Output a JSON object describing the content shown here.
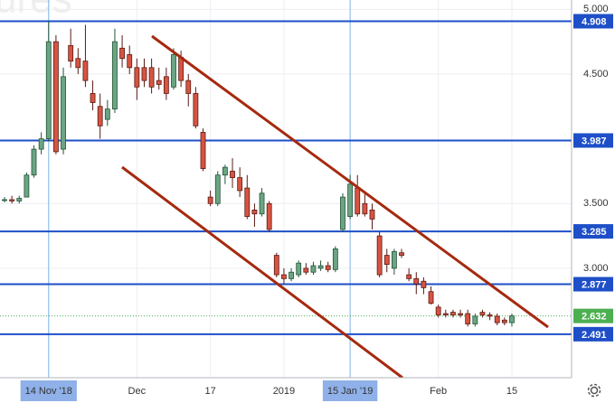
{
  "chart_data": {
    "type": "candlestick",
    "watermark": "ures",
    "categories": [
      null,
      null,
      null,
      null,
      null,
      null,
      "14 Nov '18",
      null,
      null,
      null,
      null,
      null,
      null,
      null,
      null,
      null,
      null,
      null,
      "Dec",
      null,
      null,
      null,
      null,
      null,
      null,
      null,
      null,
      null,
      "17",
      null,
      null,
      null,
      null,
      null,
      null,
      null,
      null,
      null,
      "2019",
      null,
      null,
      null,
      null,
      null,
      null,
      null,
      null,
      "15 Jan '19",
      null,
      null,
      null,
      null,
      null,
      null,
      null,
      null,
      null,
      null,
      null,
      "Feb",
      null,
      null,
      null,
      null,
      null,
      null,
      null,
      null,
      null,
      "15"
    ],
    "open": [
      3.53,
      3.53,
      3.52,
      3.55,
      3.72,
      3.92,
      4.0,
      4.75,
      3.92,
      4.72,
      4.62,
      4.6,
      4.35,
      4.25,
      4.15,
      4.23,
      4.7,
      4.65,
      4.55,
      4.55,
      4.55,
      4.45,
      4.48,
      4.4,
      4.63,
      4.45,
      4.35,
      4.05,
      3.55,
      3.5,
      3.72,
      3.75,
      3.7,
      3.62,
      3.45,
      3.42,
      3.5,
      3.1,
      2.95,
      2.92,
      2.95,
      3.0,
      2.97,
      3.0,
      3.02,
      2.99,
      3.3,
      3.4,
      3.62,
      3.5,
      3.45,
      3.25,
      3.1,
      3.0,
      3.12,
      2.95,
      2.92,
      2.9,
      2.82,
      2.7,
      2.65,
      2.66,
      2.65,
      2.65,
      2.57,
      2.66,
      2.64,
      2.63,
      2.6,
      2.58
    ],
    "high": [
      3.55,
      3.56,
      3.56,
      3.74,
      3.95,
      4.05,
      4.908,
      4.8,
      4.55,
      4.85,
      4.7,
      4.88,
      4.45,
      4.35,
      4.3,
      4.85,
      4.8,
      4.72,
      4.62,
      4.62,
      4.62,
      4.55,
      4.55,
      4.7,
      4.68,
      4.5,
      4.4,
      4.08,
      3.6,
      3.75,
      3.8,
      3.85,
      3.78,
      3.72,
      3.5,
      3.62,
      3.52,
      3.12,
      3.0,
      3.0,
      3.06,
      3.04,
      3.05,
      3.06,
      3.05,
      3.17,
      3.58,
      3.72,
      3.72,
      3.58,
      3.5,
      3.28,
      3.15,
      3.15,
      3.15,
      3.0,
      2.97,
      2.93,
      2.86,
      2.72,
      2.68,
      2.68,
      2.68,
      2.68,
      2.65,
      2.68,
      2.66,
      2.65,
      2.62,
      2.65
    ],
    "low": [
      3.51,
      3.5,
      3.5,
      3.55,
      3.7,
      3.88,
      3.98,
      3.88,
      3.88,
      4.55,
      4.5,
      4.4,
      4.22,
      4.0,
      4.1,
      4.2,
      4.55,
      4.5,
      4.3,
      4.4,
      4.35,
      4.38,
      4.3,
      4.38,
      4.4,
      4.25,
      4.08,
      3.75,
      3.48,
      3.48,
      3.65,
      3.62,
      3.55,
      3.38,
      3.32,
      3.4,
      3.28,
      2.93,
      2.88,
      2.9,
      2.93,
      2.95,
      2.95,
      2.98,
      2.97,
      2.97,
      3.28,
      3.38,
      3.4,
      3.4,
      3.3,
      2.93,
      2.97,
      2.95,
      3.08,
      2.9,
      2.8,
      2.8,
      2.72,
      2.62,
      2.62,
      2.62,
      2.62,
      2.55,
      2.55,
      2.62,
      2.6,
      2.56,
      2.56,
      2.55
    ],
    "close": [
      3.53,
      3.52,
      3.54,
      3.72,
      3.92,
      4.0,
      4.75,
      3.9,
      4.48,
      4.6,
      4.55,
      4.45,
      4.28,
      4.1,
      4.23,
      4.75,
      4.62,
      4.55,
      4.4,
      4.45,
      4.4,
      4.42,
      4.35,
      4.65,
      4.45,
      4.35,
      4.1,
      3.77,
      3.5,
      3.72,
      3.78,
      3.7,
      3.6,
      3.4,
      3.42,
      3.58,
      3.3,
      2.95,
      2.92,
      2.97,
      3.04,
      2.97,
      3.02,
      3.02,
      2.99,
      3.15,
      3.55,
      3.65,
      3.42,
      3.42,
      3.38,
      2.95,
      3.03,
      3.13,
      3.1,
      2.92,
      2.88,
      2.85,
      2.73,
      2.64,
      2.64,
      2.64,
      2.64,
      2.57,
      2.63,
      2.64,
      2.63,
      2.58,
      2.58,
      2.632
    ],
    "up_color": "#6ba583",
    "down_color": "#d75442",
    "ylim": [
      2.155,
      5.072
    ],
    "yticks": [
      {
        "value": 5.0,
        "label": "5.000"
      },
      {
        "value": 4.5,
        "label": "4.500"
      },
      {
        "value": 3.5,
        "label": "3.500"
      },
      {
        "value": 3.0,
        "label": "3.000"
      }
    ],
    "grid": true,
    "levels": [
      4.908,
      3.987,
      3.285,
      2.877,
      2.491
    ],
    "level_color": "#1e4fc8",
    "last": 2.632,
    "last_color": "#4caf50",
    "highlighted": [
      6,
      47
    ],
    "highlight_color": "#8fb0e8"
  }
}
